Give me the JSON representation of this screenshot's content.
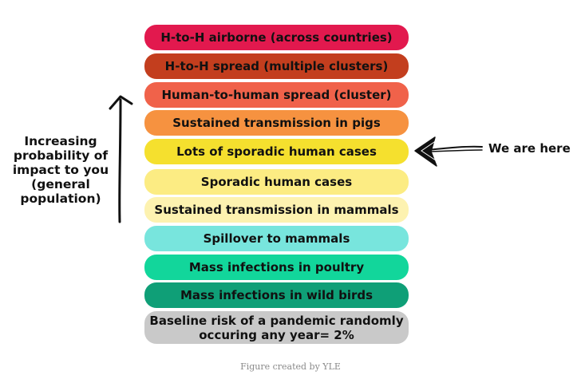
{
  "stages": [
    {
      "label": "H-to-H airborne (across countries)",
      "color": "#e2194e"
    },
    {
      "label": "H-to-H spread  (multiple clusters)",
      "color": "#c33e1e"
    },
    {
      "label": "Human-to-human spread (cluster)",
      "color": "#f0624a"
    },
    {
      "label": "Sustained transmission in pigs",
      "color": "#f69240"
    },
    {
      "label": "Lots of sporadic human cases",
      "color": "#f5e02e"
    },
    {
      "label": "Sporadic human cases",
      "color": "#fcec83"
    },
    {
      "label": "Sustained transmission in mammals",
      "color": "#fdf2b0"
    },
    {
      "label": "Spillover to mammals",
      "color": "#78e5dd"
    },
    {
      "label": "Mass infections in poultry",
      "color": "#12d69b"
    },
    {
      "label": "Mass infections in wild birds",
      "color": "#0f9f77"
    },
    {
      "label": "Baseline risk of a pandemic randomly occuring any year= 2%",
      "color": "#c9c9c9"
    }
  ],
  "side_label": "Increasing probability of impact to you (general population)",
  "pointer_label": "We are here",
  "credit": "Figure created by YLE"
}
